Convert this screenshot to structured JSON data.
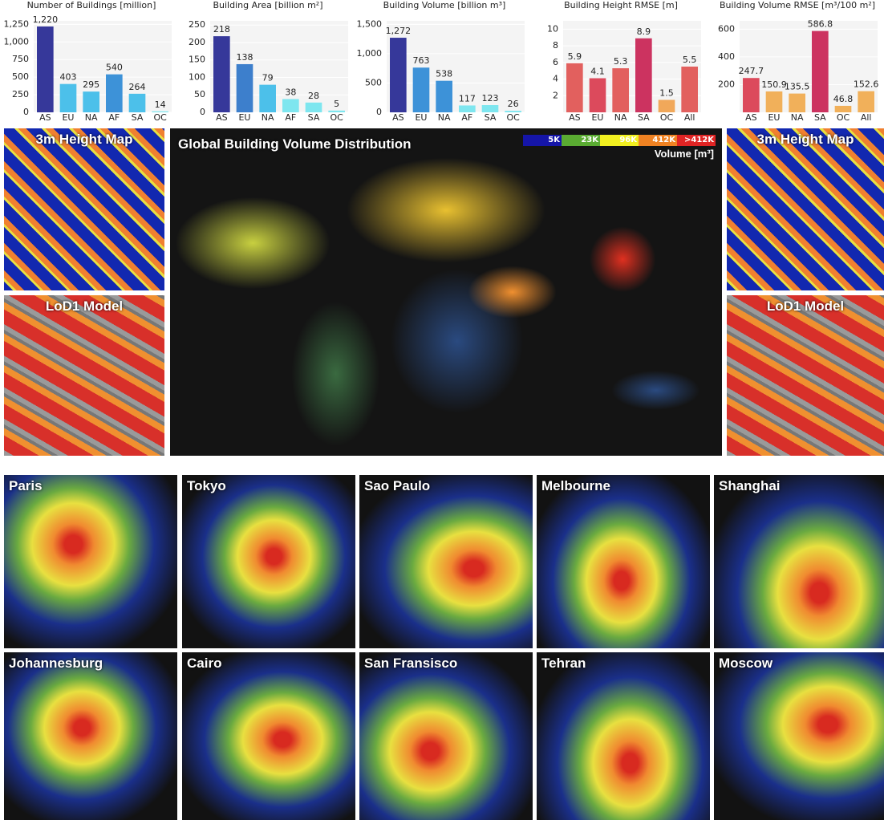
{
  "chart_data": [
    {
      "type": "bar",
      "title": "Number of Buildings [million]",
      "categories": [
        "AS",
        "EU",
        "NA",
        "AF",
        "SA",
        "OC"
      ],
      "values": [
        1220,
        403,
        295,
        540,
        264,
        14
      ],
      "value_labels": [
        "1,220",
        "403",
        "295",
        "540",
        "264",
        "14"
      ],
      "colors": [
        "#36389a",
        "#4cc0ea",
        "#4cc0ea",
        "#3d92d8",
        "#4cc0ea",
        "#7ee6ef"
      ],
      "ylim": [
        0,
        1300
      ],
      "yticks": [
        0,
        250,
        500,
        750,
        {
          "value": 1000,
          "label": "1,000"
        },
        {
          "value": 1250,
          "label": "1,250"
        }
      ],
      "grid": true
    },
    {
      "type": "bar",
      "title": "Building Area [billion m²]",
      "categories": [
        "AS",
        "EU",
        "NA",
        "AF",
        "SA",
        "OC"
      ],
      "values": [
        218,
        138,
        79,
        38,
        28,
        5
      ],
      "colors": [
        "#36389a",
        "#3d7fcc",
        "#4cc0ea",
        "#7ee6ef",
        "#7ee6ef",
        "#7ee6ef"
      ],
      "ylim": [
        0,
        262
      ],
      "yticks": [
        0,
        50,
        100,
        150,
        200,
        250
      ],
      "grid": true
    },
    {
      "type": "bar",
      "title": "Building Volume [billion m³]",
      "categories": [
        "AS",
        "EU",
        "NA",
        "AF",
        "SA",
        "OC"
      ],
      "values": [
        1272,
        763,
        538,
        117,
        123,
        26
      ],
      "value_labels": [
        "1,272",
        "763",
        "538",
        "117",
        "123",
        "26"
      ],
      "colors": [
        "#36389a",
        "#3d92d8",
        "#3d92d8",
        "#7ee6ef",
        "#7ee6ef",
        "#7ee6ef"
      ],
      "ylim": [
        0,
        1560
      ],
      "yticks": [
        0,
        500,
        {
          "value": 1000,
          "label": "1,000"
        },
        {
          "value": 1500,
          "label": "1,500"
        }
      ],
      "grid": true
    },
    {
      "type": "bar",
      "title": "Building Height RMSE [m]",
      "categories": [
        "AS",
        "EU",
        "NA",
        "SA",
        "OC",
        "All"
      ],
      "values": [
        5.9,
        4.1,
        5.3,
        8.9,
        1.5,
        5.5
      ],
      "colors": [
        "#e2605e",
        "#dc4a5c",
        "#e2605e",
        "#cc3360",
        "#f1a85a",
        "#e2605e"
      ],
      "ylim": [
        0,
        11
      ],
      "yticks": [
        2,
        4,
        6,
        8,
        10
      ],
      "grid": true
    },
    {
      "type": "bar",
      "title": "Building Volume RMSE [m³/100 m²]",
      "categories": [
        "AS",
        "EU",
        "NA",
        "SA",
        "OC",
        "All"
      ],
      "values": [
        247.7,
        150.9,
        135.5,
        586.8,
        46.8,
        152.6
      ],
      "colors": [
        "#dc4a5c",
        "#f1b05a",
        "#f1b05a",
        "#cc3360",
        "#f1b05a",
        "#f1b05a"
      ],
      "ylim": [
        0,
        660
      ],
      "yticks": [
        200,
        400,
        600
      ],
      "grid": true
    }
  ],
  "map": {
    "title": "Global Building Volume Distribution",
    "unit": "Volume [m³]",
    "legend": [
      {
        "label": "5K",
        "color": "#1515a8"
      },
      {
        "label": "23K",
        "color": "#5aac32"
      },
      {
        "label": "96K",
        "color": "#f2f020"
      },
      {
        "label": "412K",
        "color": "#f08222"
      },
      {
        "label": ">412K",
        "color": "#e02424"
      }
    ]
  },
  "insets": [
    "3m Height Map",
    "LoD1 Model",
    "3m Height Map",
    "LoD1 Model"
  ],
  "cities": [
    "Paris",
    "Tokyo",
    "Sao Paulo",
    "Melbourne",
    "Shanghai",
    "Johannesburg",
    "Cairo",
    "San Fransisco",
    "Tehran",
    "Moscow"
  ]
}
